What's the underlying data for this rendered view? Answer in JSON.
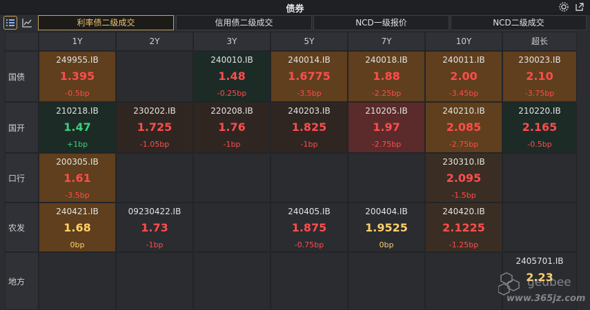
{
  "window": {
    "title": "债券"
  },
  "toolbar": {
    "tabs": [
      {
        "label": "利率债二级成交",
        "active": true
      },
      {
        "label": "信用债二级成交",
        "active": false
      },
      {
        "label": "NCD一级报价",
        "active": false
      },
      {
        "label": "NCD二级成交",
        "active": false
      }
    ]
  },
  "table": {
    "columns": [
      "1Y",
      "2Y",
      "3Y",
      "5Y",
      "7Y",
      "10Y",
      "超长"
    ],
    "rows": [
      {
        "label": "国债",
        "cells": [
          {
            "code": "249955.IB",
            "rate": "1.395",
            "chg": "-0.5bp",
            "bg": "brown",
            "tone": "red"
          },
          null,
          {
            "code": "240010.IB",
            "rate": "1.48",
            "chg": "-0.25bp",
            "bg": "green",
            "tone": "red"
          },
          {
            "code": "240014.IB",
            "rate": "1.6775",
            "chg": "-3.5bp",
            "bg": "brown",
            "tone": "red"
          },
          {
            "code": "240018.IB",
            "rate": "1.88",
            "chg": "-2.25bp",
            "bg": "brown",
            "tone": "red"
          },
          {
            "code": "240011.IB",
            "rate": "2.00",
            "chg": "-3.45bp",
            "bg": "brown",
            "tone": "red"
          },
          {
            "code": "230023.IB",
            "rate": "2.10",
            "chg": "-3.75bp",
            "bg": "brown",
            "tone": "red"
          }
        ]
      },
      {
        "label": "国开",
        "cells": [
          {
            "code": "210218.IB",
            "rate": "1.47",
            "chg": "+1bp",
            "bg": "green",
            "tone": "green"
          },
          {
            "code": "230202.IB",
            "rate": "1.725",
            "chg": "-1.05bp",
            "bg": "dark",
            "tone": "red"
          },
          {
            "code": "220208.IB",
            "rate": "1.76",
            "chg": "-1bp",
            "bg": "dark",
            "tone": "red"
          },
          {
            "code": "240203.IB",
            "rate": "1.825",
            "chg": "-1bp",
            "bg": "dark",
            "tone": "red"
          },
          {
            "code": "210205.IB",
            "rate": "1.97",
            "chg": "-2.75bp",
            "bg": "red",
            "tone": "red"
          },
          {
            "code": "240210.IB",
            "rate": "2.085",
            "chg": "-2.75bp",
            "bg": "brown",
            "tone": "red"
          },
          {
            "code": "210220.IB",
            "rate": "2.165",
            "chg": "-0.5bp",
            "bg": "green",
            "tone": "red"
          }
        ]
      },
      {
        "label": "口行",
        "cells": [
          {
            "code": "200305.IB",
            "rate": "1.61",
            "chg": "-3.5bp",
            "bg": "brown",
            "tone": "red"
          },
          null,
          null,
          null,
          null,
          {
            "code": "230310.IB",
            "rate": "2.095",
            "chg": "-1.5bp",
            "bg": "mid",
            "tone": "red"
          },
          null
        ]
      },
      {
        "label": "农发",
        "cells": [
          {
            "code": "240421.IB",
            "rate": "1.68",
            "chg": "0bp",
            "bg": "brown",
            "tone": "yellow"
          },
          {
            "code": "09230422.IB",
            "rate": "1.73",
            "chg": "-1bp",
            "bg": "none",
            "tone": "red"
          },
          null,
          {
            "code": "240405.IB",
            "rate": "1.875",
            "chg": "-0.75bp",
            "bg": "none",
            "tone": "red"
          },
          {
            "code": "200404.IB",
            "rate": "1.9525",
            "chg": "0bp",
            "bg": "none",
            "tone": "yellow"
          },
          {
            "code": "240420.IB",
            "rate": "2.1225",
            "chg": "-1.25bp",
            "bg": "mid",
            "tone": "red"
          },
          null
        ]
      },
      {
        "label": "地方",
        "cells": [
          null,
          null,
          null,
          null,
          null,
          null,
          {
            "code": "2405701.IB",
            "rate": "2.23",
            "chg": "",
            "bg": "none",
            "tone": "yellow"
          }
        ]
      }
    ]
  },
  "watermark": {
    "line1": "geubee",
    "line2": "www.365jz.com"
  },
  "colors": {
    "accent": "#c9a15a",
    "down": "#ff4d4d",
    "up": "#3cd07a",
    "flat": "#ffcf6a"
  },
  "icons": [
    "list-view-icon",
    "chart-view-icon",
    "settings-icon",
    "popout-icon"
  ]
}
